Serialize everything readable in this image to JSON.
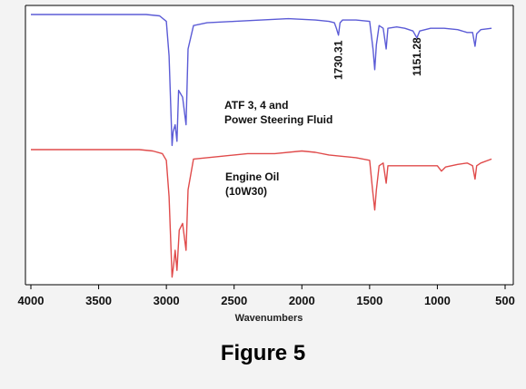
{
  "caption": "Figure 5",
  "chart_data": {
    "type": "line",
    "title": "",
    "xlabel": "Wavenumbers",
    "ylabel": "",
    "xlim": [
      4000,
      500
    ],
    "x_reversed": true,
    "y_axis_visible": false,
    "grid": false,
    "x_ticks": [
      4000,
      3500,
      3000,
      2500,
      2000,
      1500,
      1000,
      500
    ],
    "tick_labels": [
      "4000",
      "3500",
      "3000",
      "2500",
      "2000",
      "1500",
      "1000",
      "500"
    ],
    "series": [
      {
        "name": "ATF 3, 4 and Power Steering Fluid",
        "color": "#5b5bd6",
        "points": [
          [
            4000,
            0.0
          ],
          [
            3600,
            0.0
          ],
          [
            3300,
            0.0
          ],
          [
            3150,
            0.0
          ],
          [
            3050,
            0.01
          ],
          [
            3000,
            0.05
          ],
          [
            2980,
            0.3
          ],
          [
            2958,
            0.95
          ],
          [
            2950,
            0.85
          ],
          [
            2935,
            0.8
          ],
          [
            2922,
            0.92
          ],
          [
            2910,
            0.55
          ],
          [
            2880,
            0.6
          ],
          [
            2855,
            0.8
          ],
          [
            2840,
            0.25
          ],
          [
            2800,
            0.08
          ],
          [
            2700,
            0.06
          ],
          [
            2500,
            0.05
          ],
          [
            2300,
            0.04
          ],
          [
            2100,
            0.03
          ],
          [
            1900,
            0.04
          ],
          [
            1800,
            0.05
          ],
          [
            1760,
            0.06
          ],
          [
            1745,
            0.1
          ],
          [
            1730,
            0.15
          ],
          [
            1718,
            0.06
          ],
          [
            1700,
            0.04
          ],
          [
            1600,
            0.04
          ],
          [
            1500,
            0.05
          ],
          [
            1475,
            0.25
          ],
          [
            1462,
            0.4
          ],
          [
            1450,
            0.22
          ],
          [
            1430,
            0.08
          ],
          [
            1400,
            0.1
          ],
          [
            1378,
            0.25
          ],
          [
            1365,
            0.1
          ],
          [
            1300,
            0.09
          ],
          [
            1240,
            0.1
          ],
          [
            1180,
            0.12
          ],
          [
            1151,
            0.17
          ],
          [
            1130,
            0.12
          ],
          [
            1050,
            0.1
          ],
          [
            950,
            0.1
          ],
          [
            850,
            0.11
          ],
          [
            780,
            0.13
          ],
          [
            740,
            0.13
          ],
          [
            722,
            0.23
          ],
          [
            710,
            0.14
          ],
          [
            680,
            0.11
          ],
          [
            600,
            0.1
          ]
        ]
      },
      {
        "name": "Engine Oil (10W30)",
        "color": "#e04b4b",
        "points": [
          [
            4000,
            0.0
          ],
          [
            3500,
            0.0
          ],
          [
            3200,
            0.0
          ],
          [
            3100,
            0.01
          ],
          [
            3030,
            0.03
          ],
          [
            3000,
            0.08
          ],
          [
            2980,
            0.35
          ],
          [
            2958,
            0.95
          ],
          [
            2945,
            0.85
          ],
          [
            2935,
            0.75
          ],
          [
            2922,
            0.9
          ],
          [
            2905,
            0.6
          ],
          [
            2880,
            0.55
          ],
          [
            2855,
            0.75
          ],
          [
            2840,
            0.3
          ],
          [
            2800,
            0.07
          ],
          [
            2600,
            0.05
          ],
          [
            2400,
            0.03
          ],
          [
            2200,
            0.03
          ],
          [
            2000,
            0.01
          ],
          [
            1900,
            0.02
          ],
          [
            1800,
            0.04
          ],
          [
            1700,
            0.05
          ],
          [
            1600,
            0.06
          ],
          [
            1500,
            0.08
          ],
          [
            1478,
            0.3
          ],
          [
            1462,
            0.45
          ],
          [
            1450,
            0.3
          ],
          [
            1430,
            0.12
          ],
          [
            1400,
            0.1
          ],
          [
            1378,
            0.25
          ],
          [
            1365,
            0.12
          ],
          [
            1300,
            0.12
          ],
          [
            1200,
            0.12
          ],
          [
            1100,
            0.12
          ],
          [
            1000,
            0.12
          ],
          [
            970,
            0.16
          ],
          [
            940,
            0.13
          ],
          [
            850,
            0.11
          ],
          [
            780,
            0.1
          ],
          [
            740,
            0.12
          ],
          [
            722,
            0.22
          ],
          [
            710,
            0.12
          ],
          [
            680,
            0.1
          ],
          [
            600,
            0.07
          ]
        ]
      }
    ],
    "annotations": [
      {
        "text": "1730.31",
        "x": 1730,
        "series": 0,
        "rotation": -90
      },
      {
        "text": "1151.28",
        "x": 1151,
        "series": 0,
        "rotation": -90
      }
    ],
    "labels": [
      {
        "lines": [
          "ATF 3, 4 and",
          "Power Steering Fluid"
        ],
        "series": 0
      },
      {
        "lines": [
          "Engine Oil",
          "(10W30)"
        ],
        "series": 1
      }
    ]
  }
}
